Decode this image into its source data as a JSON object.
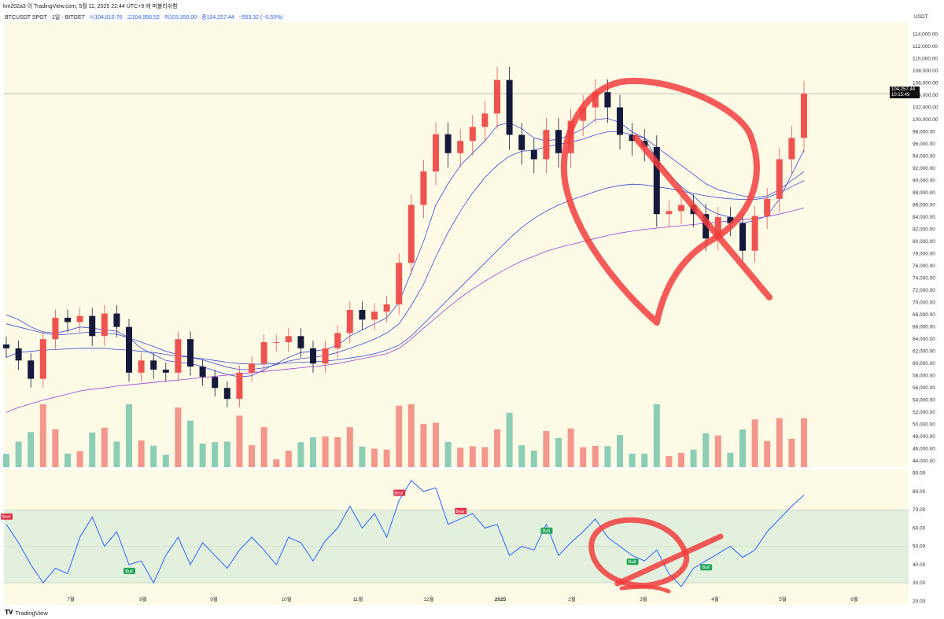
{
  "header": {
    "attribution": "km202a3 이 TradingView.com, 5월 11, 2025 22:44 UTC+9 에 퍼블리쉬함",
    "symbol": "BTCUSDT SPOT · 1일 · BITGET",
    "open": "시104,810.76",
    "high": "고104,956.52",
    "low": "저103,350.00",
    "close": "종104,257.44",
    "change": "−553.32 (−0.53%)"
  },
  "price_axis": {
    "currency": "USDT",
    "current_price": "104,257.44",
    "countdown": "10:15:49"
  },
  "footer": {
    "brand": "TradingView"
  },
  "colors": {
    "background": "#fdfbe6",
    "up": "#ef5350",
    "down": "#151a3d",
    "vol_up": "#f28b82",
    "vol_down": "#7fc8b0",
    "ma_short": "#3a4bd6",
    "ma_long": "#9b3fd6",
    "rsi_line": "#2962ff",
    "rsi_band": "#e4f0de",
    "annotation": "#f23d3d"
  },
  "chart_data": [
    {
      "type": "candlestick",
      "title": "BTCUSDT SPOT · 1일 · BITGET",
      "x_ticks": [
        "7월",
        "8월",
        "9월",
        "10월",
        "11월",
        "12월",
        "2025",
        "2월",
        "3월",
        "4월",
        "5월",
        "6월"
      ],
      "y_ticks": [
        "114,000.00",
        "112,000.00",
        "110,000.00",
        "108,000.00",
        "106,000.00",
        "104,000.00",
        "102,000.00",
        "100,000.00",
        "98,000.00",
        "96,000.00",
        "94,000.00",
        "92,000.00",
        "90,000.00",
        "88,000.00",
        "86,000.00",
        "84,000.00",
        "82,000.00",
        "80,000.00",
        "78,000.00",
        "76,000.00",
        "74,000.00",
        "72,000.00",
        "70,000.00",
        "68,000.00",
        "66,000.00",
        "64,000.00",
        "62,000.00",
        "60,000.00",
        "58,000.00",
        "56,000.00",
        "54,000.00",
        "52,000.00",
        "50,000.00",
        "48,000.00",
        "46,000.00",
        "44,000.00"
      ],
      "ylim": [
        43000,
        116000
      ],
      "weekly_closes": [
        62500,
        60500,
        57500,
        64000,
        67500,
        66800,
        67800,
        64500,
        68200,
        66000,
        58500,
        60500,
        59000,
        58500,
        64000,
        59500,
        57800,
        56000,
        54200,
        58500,
        60000,
        63500,
        63500,
        64500,
        62500,
        60000,
        62500,
        65000,
        68800,
        67200,
        68500,
        69700,
        76500,
        86000,
        91500,
        97600,
        94500,
        96500,
        98800,
        101000,
        106500,
        97500,
        95000,
        93500,
        98300,
        94500,
        99800,
        102000,
        104500,
        102000,
        97500,
        96500,
        95500,
        84500,
        85000,
        86000,
        84500,
        80500,
        84000,
        83000,
        78500,
        84200,
        87000,
        93500,
        97000,
        104257
      ],
      "moving_averages": [
        {
          "values": [
            68000,
            67200,
            66000,
            65200,
            65000,
            65400,
            66000,
            65800,
            65500,
            65300,
            64200,
            62500,
            61500,
            60500,
            60200,
            60000,
            59500,
            58800,
            58200,
            57800,
            58000,
            59000,
            60000,
            61000,
            61800,
            62000,
            62300,
            63000,
            64500,
            65500,
            66500,
            67500,
            70000,
            75000,
            80000,
            86000,
            89500,
            92500,
            94500,
            96500,
            99000,
            99500,
            98500,
            97000,
            96500,
            96800,
            97500,
            98500,
            100000,
            100200,
            99500,
            98000,
            97000,
            93500,
            91000,
            89000,
            87500,
            85500,
            84500,
            84000,
            83000,
            83500,
            84200,
            87000,
            91000,
            95000
          ]
        },
        {
          "values": [
            66500,
            66000,
            65500,
            65000,
            64700,
            64800,
            65000,
            65200,
            65000,
            64800,
            64200,
            63500,
            62800,
            62000,
            61500,
            61000,
            60600,
            60000,
            59400,
            59000,
            59000,
            59300,
            59800,
            60400,
            60800,
            61000,
            61300,
            61800,
            62500,
            63200,
            64000,
            65000,
            66500,
            69500,
            73000,
            77500,
            81500,
            85000,
            88000,
            90500,
            92500,
            94000,
            94800,
            95000,
            95500,
            96000,
            96300,
            96800,
            97500,
            98000,
            98000,
            97500,
            97000,
            95500,
            94000,
            92500,
            91000,
            89500,
            88500,
            88000,
            87500,
            87200,
            87500,
            88500,
            90000,
            91500
          ]
        },
        {
          "values": [
            61000,
            61800,
            62000,
            62200,
            62300,
            62400,
            62500,
            62500,
            62500,
            62300,
            62200,
            62000,
            61800,
            61500,
            61200,
            61000,
            60800,
            60500,
            60200,
            60000,
            59900,
            59900,
            60000,
            60100,
            60200,
            60300,
            60400,
            60600,
            60900,
            61200,
            61600,
            62200,
            63000,
            64500,
            66500,
            68500,
            70500,
            72500,
            74500,
            76500,
            78500,
            80500,
            82300,
            83800,
            85000,
            86000,
            86800,
            87500,
            88200,
            88800,
            89200,
            89400,
            89300,
            89000,
            88700,
            88300,
            87900,
            87500,
            87200,
            87000,
            86900,
            86900,
            87200,
            88000,
            89000,
            90000
          ]
        },
        {
          "values": [
            52000,
            52800,
            53400,
            54000,
            54500,
            55000,
            55500,
            55800,
            56000,
            56300,
            56500,
            56700,
            56900,
            57100,
            57300,
            57500,
            57700,
            57900,
            58100,
            58300,
            58500,
            58700,
            58900,
            59100,
            59300,
            59500,
            59700,
            60000,
            60400,
            60800,
            61200,
            61600,
            62500,
            64000,
            65800,
            67500,
            69200,
            70800,
            72200,
            73500,
            74700,
            75800,
            76800,
            77600,
            78400,
            79000,
            79500,
            80000,
            80500,
            81000,
            81400,
            81700,
            82000,
            82200,
            82400,
            82600,
            82800,
            83000,
            83200,
            83400,
            83600,
            83800,
            84100,
            84500,
            85000,
            85500
          ]
        }
      ],
      "volume_note": "volume histogram shown per week"
    },
    {
      "type": "line",
      "title": "",
      "y_ticks": [
        "90.00",
        "80.00",
        "70.00",
        "60.00",
        "50.00",
        "40.00",
        "30.00",
        "20.00"
      ],
      "ylim": [
        18,
        92
      ],
      "band": [
        30,
        70
      ],
      "midline": 50,
      "weekly_values": [
        62,
        52,
        40,
        30,
        38,
        35,
        55,
        66,
        50,
        58,
        40,
        42,
        30,
        45,
        55,
        40,
        52,
        45,
        38,
        48,
        55,
        48,
        40,
        55,
        52,
        42,
        53,
        60,
        72,
        60,
        68,
        55,
        75,
        86,
        80,
        82,
        62,
        65,
        68,
        60,
        62,
        45,
        50,
        48,
        62,
        45,
        52,
        58,
        65,
        55,
        50,
        45,
        42,
        48,
        35,
        28,
        38,
        42,
        46,
        50,
        44,
        48,
        58,
        65,
        72,
        78
      ],
      "labels": [
        {
          "text": "Bear",
          "week": 0
        },
        {
          "text": "Bull",
          "week": 10
        },
        {
          "text": "Bear",
          "week": 32
        },
        {
          "text": "Bear",
          "week": 37
        },
        {
          "text": "Bull",
          "week": 44
        },
        {
          "text": "Bull",
          "week": 51
        },
        {
          "text": "Bull",
          "week": 57
        }
      ]
    }
  ]
}
